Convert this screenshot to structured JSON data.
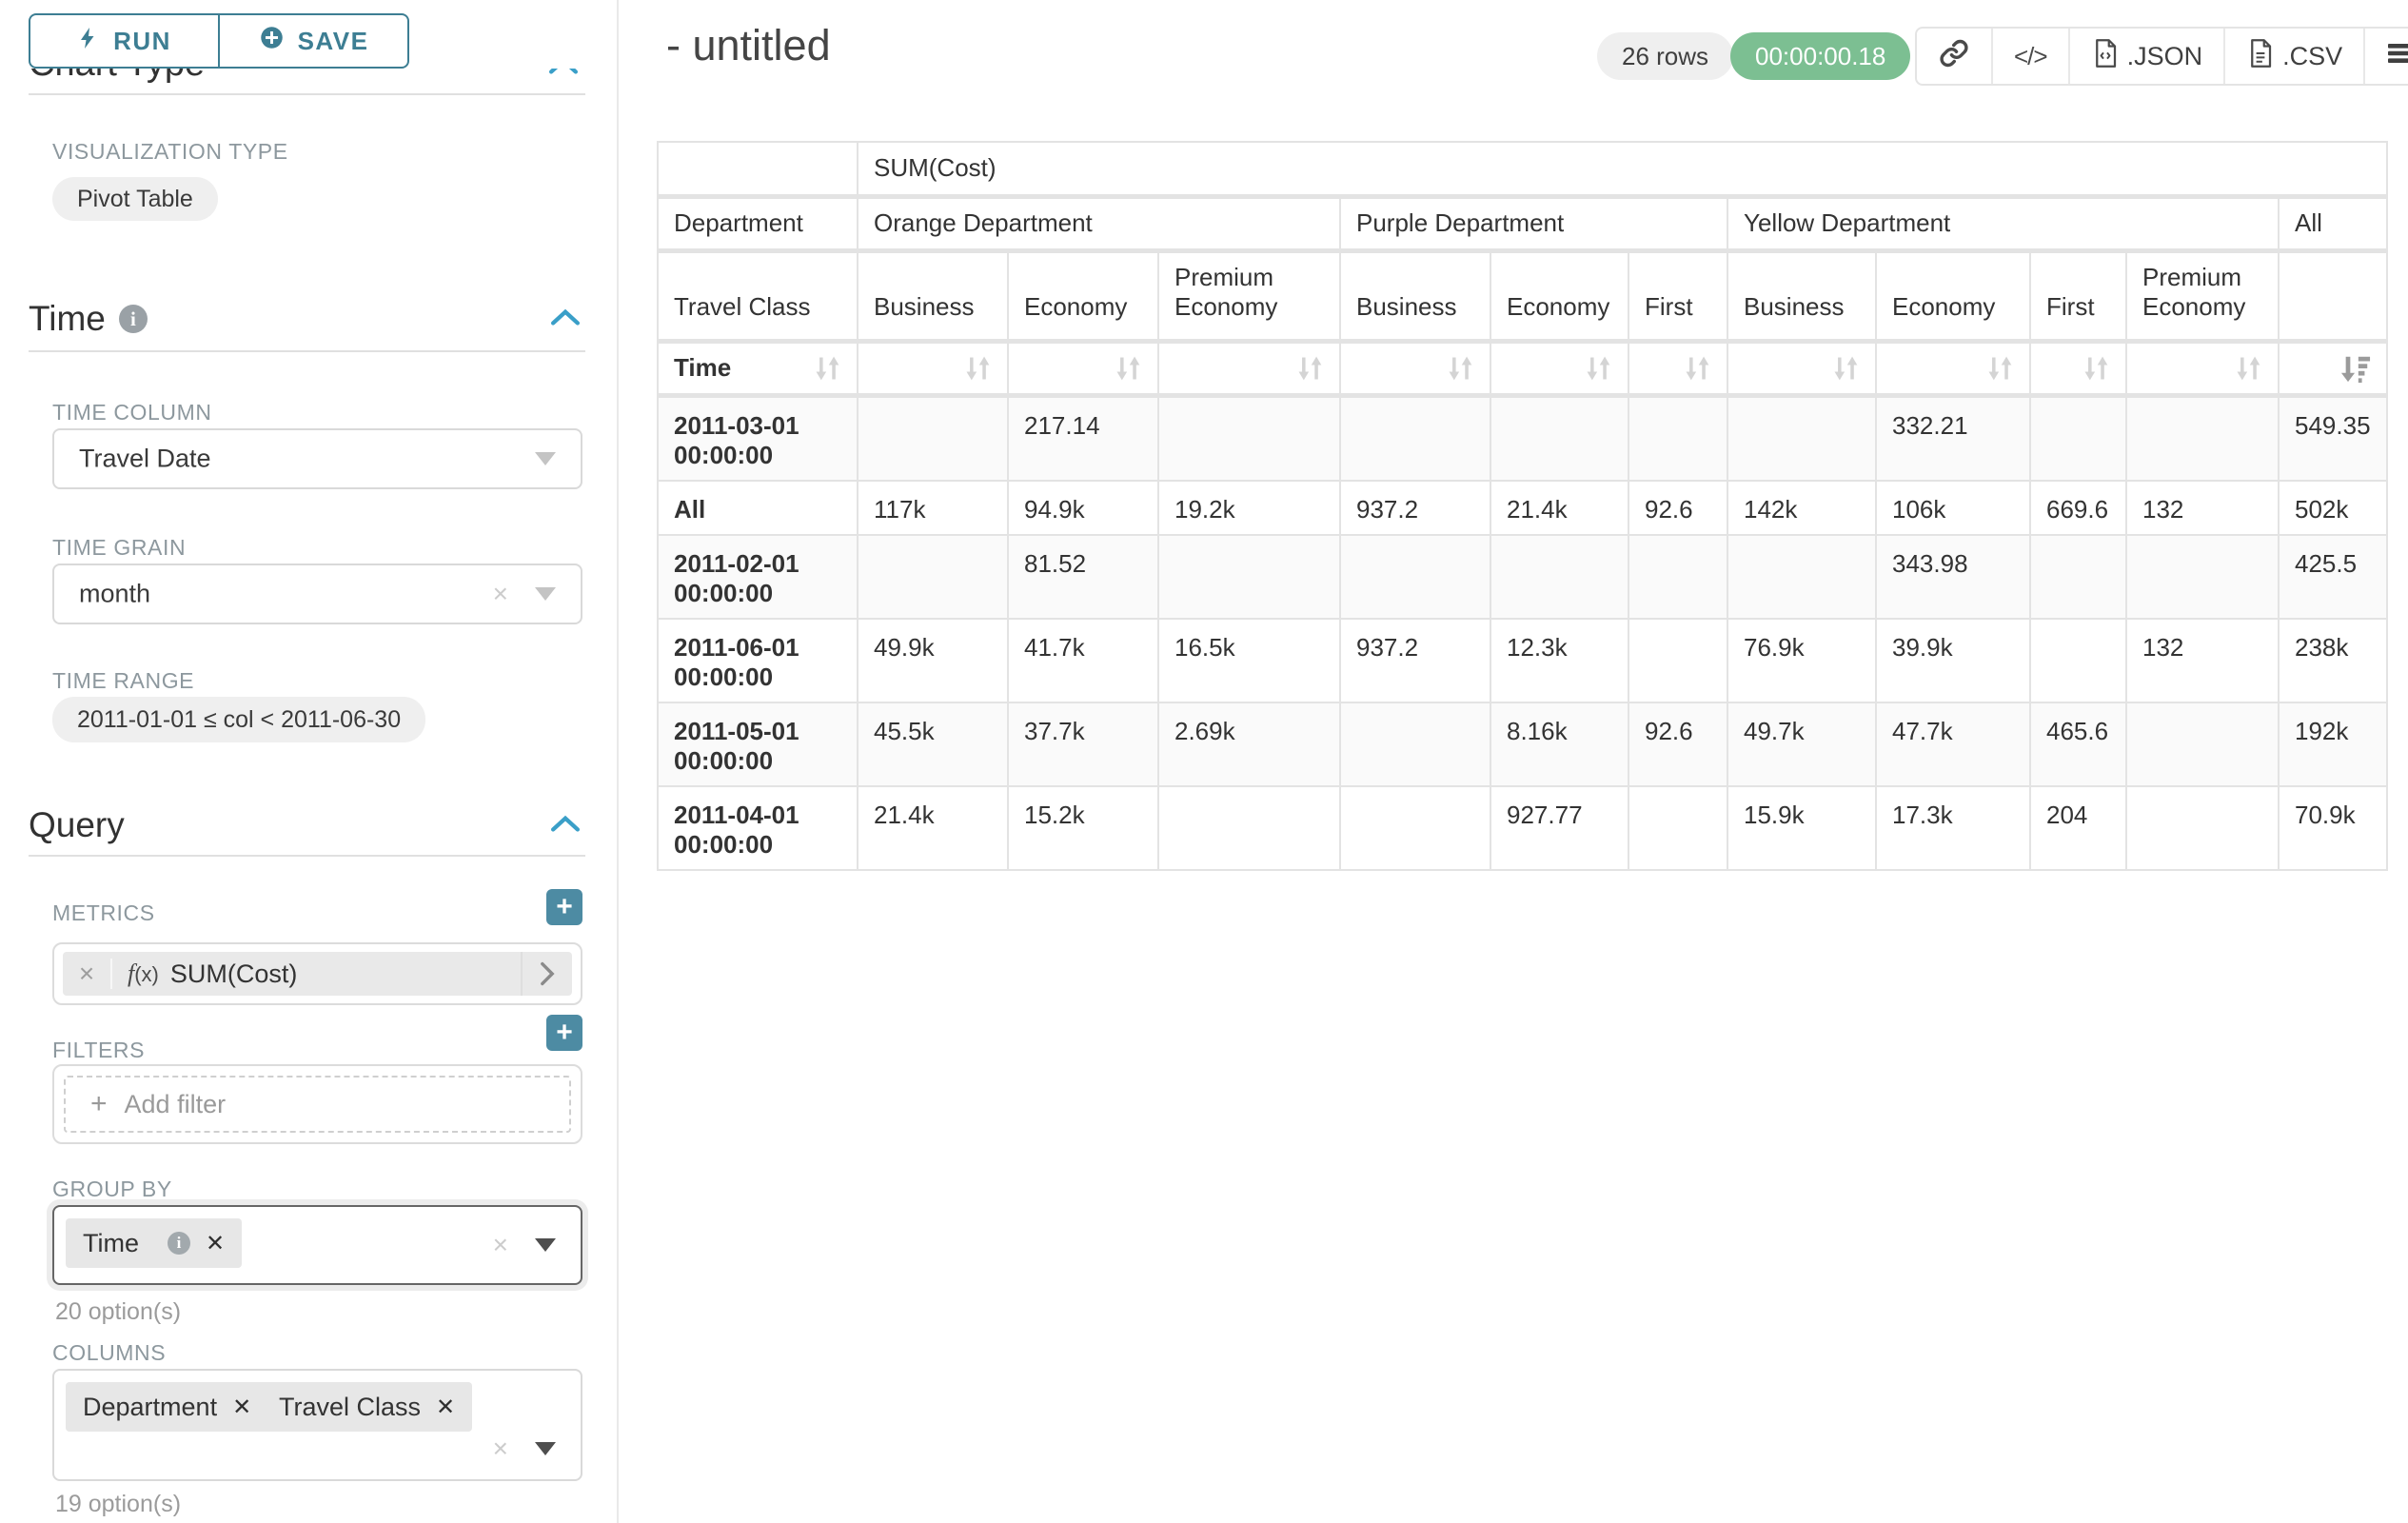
{
  "colors": {
    "accent_teal": "#3d7e93",
    "plus_button_teal": "#4d8ba3",
    "chevron_blue": "#3a9fc8",
    "timer_green": "#7cbf92",
    "label_gray": "#8d989e",
    "border_gray": "#e3e3e3"
  },
  "icons": {
    "run": "lightning-icon",
    "save": "plus-circle-icon",
    "section_info": "info-circle-icon",
    "collapse": "chevron-up-icon",
    "select_caret": "chevron-down-caret",
    "sort": "sort-arrows-icon",
    "sort_desc": "sort-amount-desc-icon",
    "link": "link-chain-icon",
    "code": "code-brackets-icon",
    "json_file": "file-code-icon",
    "csv_file": "file-text-icon",
    "menu": "hamburger-menu-icon"
  },
  "sidebar": {
    "run_label": "RUN",
    "save_label": "SAVE",
    "chart_type_heading": "Chart Type",
    "viz_type_label": "VISUALIZATION TYPE",
    "viz_type_value": "Pivot Table",
    "time": {
      "title": "Time",
      "column_label": "TIME COLUMN",
      "column_value": "Travel Date",
      "grain_label": "TIME GRAIN",
      "grain_value": "month",
      "range_label": "TIME RANGE",
      "range_value": "2011-01-01 ≤ col < 2011-06-30"
    },
    "query": {
      "title": "Query",
      "metrics_label": "METRICS",
      "metric_fx": "(x)",
      "metric_value": "SUM(Cost)",
      "filters_label": "FILTERS",
      "add_filter_label": "Add filter",
      "group_by_label": "GROUP BY",
      "group_by_tags": [
        "Time"
      ],
      "group_by_count": "20 option(s)",
      "columns_label": "COLUMNS",
      "columns_tags": [
        "Department",
        "Travel Class"
      ],
      "columns_count": "19 option(s)"
    }
  },
  "header": {
    "title": "- untitled",
    "rows_badge": "26 rows",
    "timer_badge": "00:00:00.18",
    "code_label": "</>",
    "json_label": ".JSON",
    "csv_label": ".CSV"
  },
  "pivot": {
    "metric_header": "SUM(Cost)",
    "dept_row_label": "Department",
    "class_row_label": "Travel Class",
    "time_row_label": "Time",
    "col_groups": [
      {
        "label": "Orange Department",
        "cols": [
          "Business",
          "Economy",
          "Premium Economy"
        ]
      },
      {
        "label": "Purple Department",
        "cols": [
          "Business",
          "Economy",
          "First"
        ]
      },
      {
        "label": "Yellow Department",
        "cols": [
          "Business",
          "Economy",
          "First",
          "Premium Economy"
        ]
      },
      {
        "label": "All",
        "cols": [
          ""
        ]
      }
    ],
    "rows": [
      {
        "label": "2011-03-01 00:00:00",
        "values": [
          "",
          "217.14",
          "",
          "",
          "",
          "",
          "",
          "332.21",
          "",
          "",
          "549.35"
        ]
      },
      {
        "label": "All",
        "values": [
          "117k",
          "94.9k",
          "19.2k",
          "937.2",
          "21.4k",
          "92.6",
          "142k",
          "106k",
          "669.6",
          "132",
          "502k"
        ]
      },
      {
        "label": "2011-02-01 00:00:00",
        "values": [
          "",
          "81.52",
          "",
          "",
          "",
          "",
          "",
          "343.98",
          "",
          "",
          "425.5"
        ]
      },
      {
        "label": "2011-06-01 00:00:00",
        "values": [
          "49.9k",
          "41.7k",
          "16.5k",
          "937.2",
          "12.3k",
          "",
          "76.9k",
          "39.9k",
          "",
          "132",
          "238k"
        ]
      },
      {
        "label": "2011-05-01 00:00:00",
        "values": [
          "45.5k",
          "37.7k",
          "2.69k",
          "",
          "8.16k",
          "92.6",
          "49.7k",
          "47.7k",
          "465.6",
          "",
          "192k"
        ]
      },
      {
        "label": "2011-04-01 00:00:00",
        "values": [
          "21.4k",
          "15.2k",
          "",
          "",
          "927.77",
          "",
          "15.9k",
          "17.3k",
          "204",
          "",
          "70.9k"
        ]
      }
    ]
  }
}
